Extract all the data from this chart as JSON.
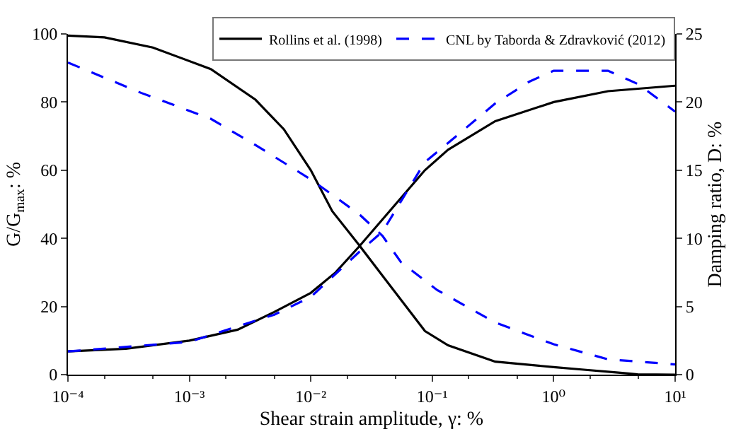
{
  "chart_data": {
    "type": "line",
    "xlabel": "Shear strain amplitude, γ: %",
    "ylabel": "G/G$_{max}$: %",
    "y2label": "Damping ratio, D: %",
    "log": "x",
    "grid": false,
    "legend": "top right",
    "marker": "none",
    "xlim": [
      0.0001,
      10
    ],
    "xticks": [
      {
        "value": 0.0001,
        "label": "10⁻⁴"
      },
      {
        "value": 0.001,
        "label": "10⁻³"
      },
      {
        "value": 0.01,
        "label": "10⁻²"
      },
      {
        "value": 0.1,
        "label": "10⁻¹"
      },
      {
        "value": 1,
        "label": "10⁰"
      },
      {
        "value": 10,
        "label": "10¹"
      }
    ],
    "ylim": [
      0,
      100
    ],
    "yticks": [
      0,
      20,
      40,
      60,
      80,
      100
    ],
    "y2lim": [
      0,
      25
    ],
    "y2ticks": [
      0,
      5,
      10,
      15,
      20,
      25
    ],
    "series": [
      {
        "name": "Rollins et al. (1998)",
        "color": "#000000",
        "line_style": "solid",
        "x": [
          0.0001,
          0.0002,
          0.0005,
          0.001,
          0.0015,
          0.0035,
          0.006,
          0.01,
          0.015,
          0.025,
          0.039,
          0.087,
          0.135,
          0.33,
          1,
          1.7,
          3.4,
          4.9,
          10
        ],
        "values": [
          99.5,
          99,
          96,
          null,
          89.7,
          80.7,
          72,
          60,
          48,
          38,
          29,
          12.8,
          8.6,
          3.8,
          2.2,
          1.5,
          0.6,
          0.1,
          0
        ]
      },
      {
        "name": "CNL by Taborda & Zdravković (2012)",
        "color": "#0000ff",
        "line_style": "dashed",
        "x": [
          0.0001,
          0.0004,
          0.0015,
          0.0035,
          0.01,
          0.025,
          0.039,
          0.055,
          0.11,
          0.33,
          1,
          2.8,
          10
        ],
        "values": [
          91.6,
          82.7,
          75.1,
          67.4,
          57.3,
          47.1,
          40.7,
          33.1,
          24.8,
          15.3,
          8.9,
          4.5,
          3.0
        ]
      },
      {
        "color": "#000000",
        "line_style": "solid",
        "axis": "y2",
        "x": [
          0.0001,
          0.0003,
          0.001,
          0.0025,
          0.005,
          0.01,
          0.016,
          0.025,
          0.039,
          0.087,
          0.135,
          0.33,
          1,
          2.8,
          10
        ],
        "values": [
          1.7,
          1.9,
          2.5,
          3.3,
          4.6,
          6.0,
          7.5,
          9.4,
          11.4,
          15,
          16.5,
          18.6,
          20,
          20.8,
          21.2
        ]
      },
      {
        "color": "#0000ff",
        "line_style": "dashed",
        "axis": "y2",
        "x": [
          0.0001,
          0.001,
          0.005,
          0.01,
          0.025,
          0.039,
          0.087,
          0.135,
          0.33,
          0.63,
          1,
          2.8,
          5,
          10
        ],
        "values": [
          1.7,
          2.4,
          4.4,
          5.7,
          9.0,
          10.5,
          15.6,
          17,
          19.9,
          21.5,
          22.3,
          22.3,
          21.3,
          19.3
        ]
      }
    ]
  }
}
